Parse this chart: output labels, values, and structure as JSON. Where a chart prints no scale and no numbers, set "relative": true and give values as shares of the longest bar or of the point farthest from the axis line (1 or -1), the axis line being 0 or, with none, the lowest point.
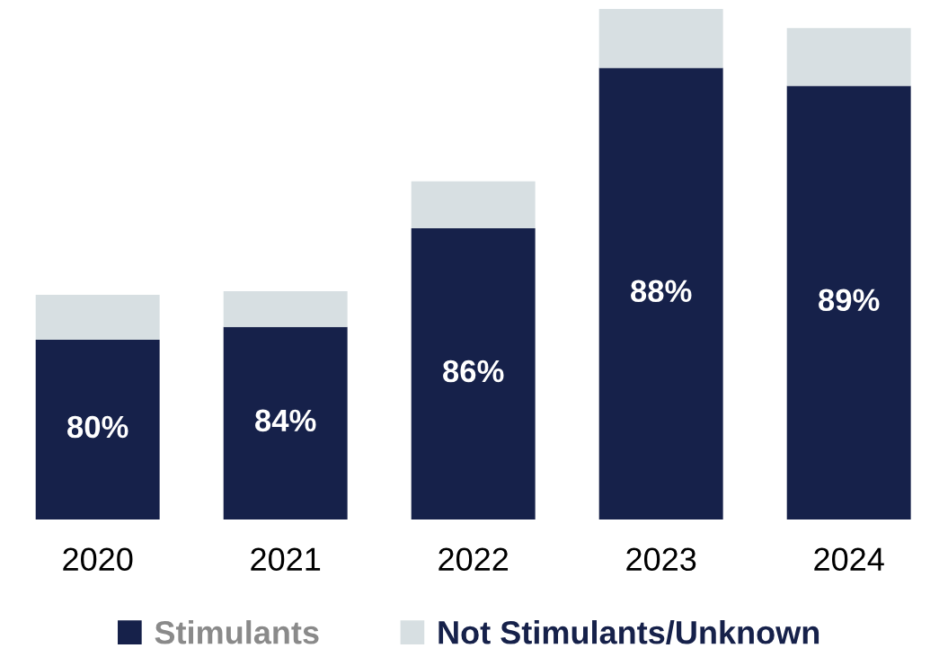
{
  "chart_data": {
    "type": "bar",
    "stacked": true,
    "relative": true,
    "categories": [
      "2020",
      "2021",
      "2022",
      "2023",
      "2024"
    ],
    "series": [
      {
        "name": "Stimulants",
        "color": "#16214a",
        "values": [
          0.352,
          0.377,
          0.57,
          0.884,
          0.849
        ]
      },
      {
        "name": "Not Stimulants/Unknown",
        "color": "#d7dfe2",
        "values": [
          0.088,
          0.07,
          0.092,
          0.116,
          0.113
        ]
      }
    ],
    "annotations": [
      "80%",
      "84%",
      "86%",
      "88%",
      "89%"
    ],
    "legend": "bottom",
    "grid": false
  }
}
